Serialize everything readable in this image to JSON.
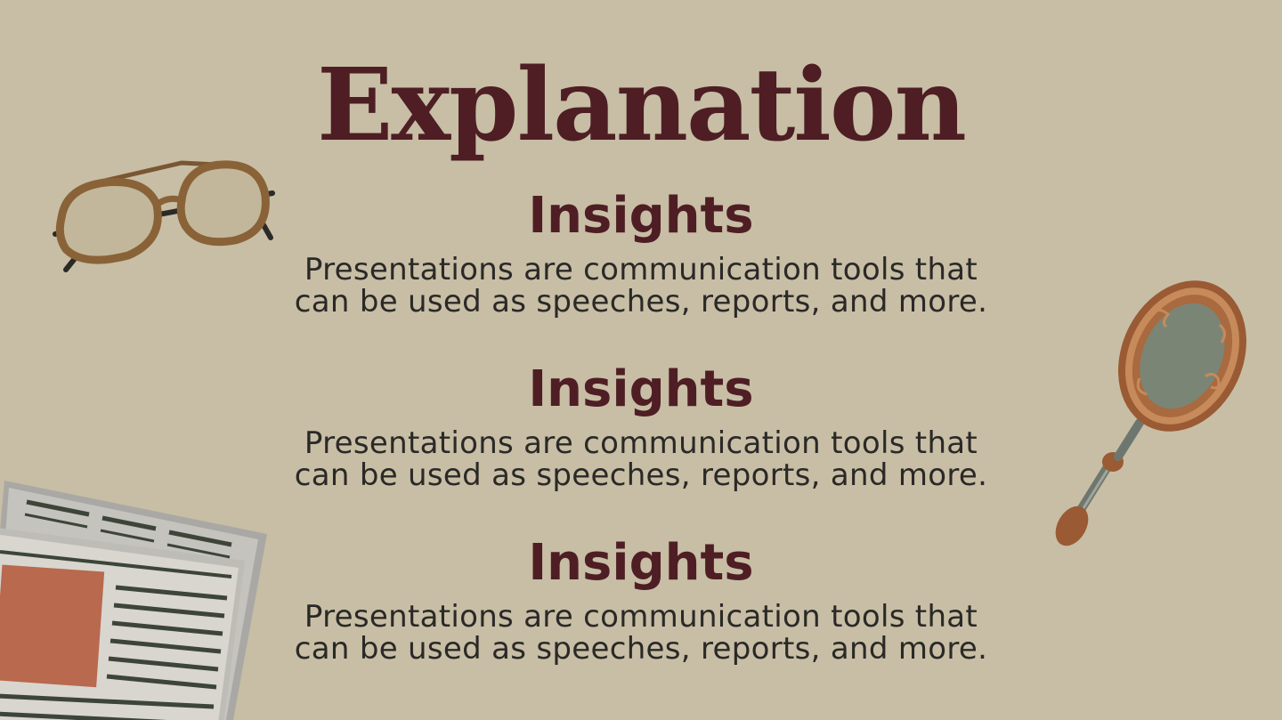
{
  "slide": {
    "title": "Explanation",
    "sections": [
      {
        "heading": "Insights",
        "line1": "Presentations are communication tools that",
        "line2": "can be used as speeches, reports, and more."
      },
      {
        "heading": "Insights",
        "line1": "Presentations are communication tools that",
        "line2": "can be used as speeches, reports, and more."
      },
      {
        "heading": "Insights",
        "line1": "Presentations are communication tools that",
        "line2": "can be used as speeches, reports, and more."
      }
    ]
  },
  "colors": {
    "background": "#c7bea5",
    "title": "#4e1e24",
    "body_text": "#2b2927",
    "accent_brown": "#8a6238",
    "accent_rust": "#b86a52"
  },
  "decorations": [
    "eyeglasses-illustration",
    "hand-mirror-illustration",
    "newspaper-illustration"
  ]
}
